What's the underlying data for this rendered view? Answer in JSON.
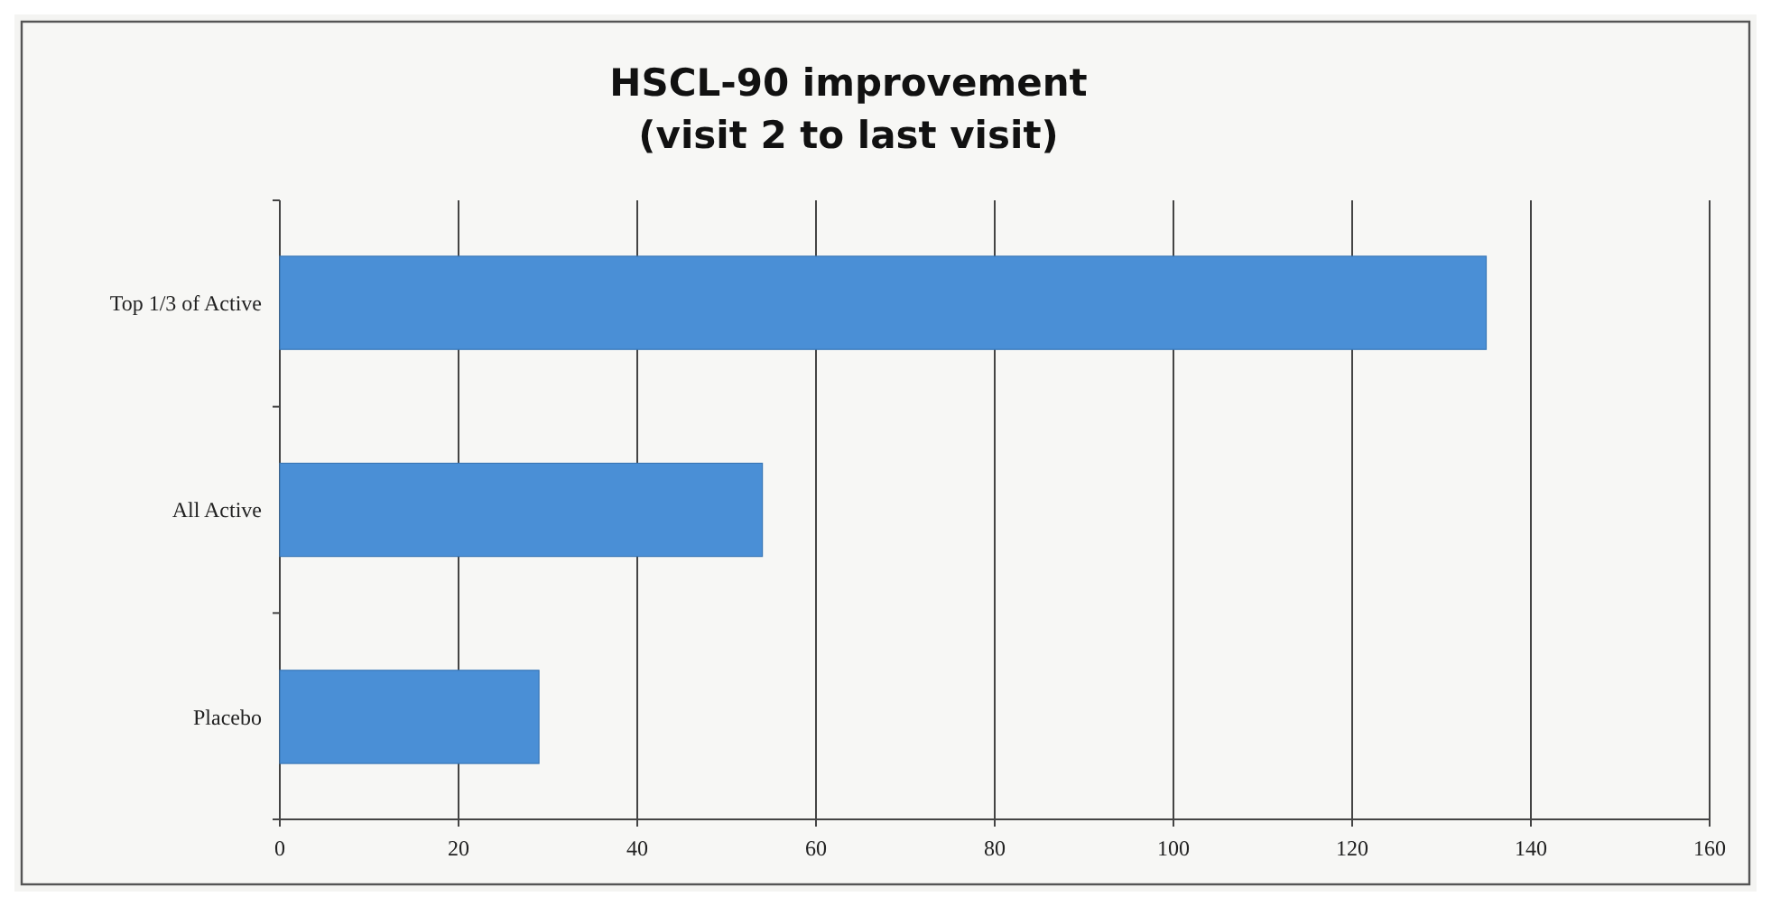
{
  "chart_data": {
    "type": "bar",
    "orientation": "horizontal",
    "title": "HSCL-90 improvement\n(visit 2 to last visit)",
    "categories": [
      "Top 1/3 of Active",
      "All Active",
      "Placebo"
    ],
    "values": [
      135,
      54,
      29
    ],
    "color": "#4a8fd6",
    "xlim": [
      0,
      160
    ],
    "xticks": [
      0,
      20,
      40,
      60,
      80,
      100,
      120,
      140,
      160
    ],
    "grid": "x"
  }
}
